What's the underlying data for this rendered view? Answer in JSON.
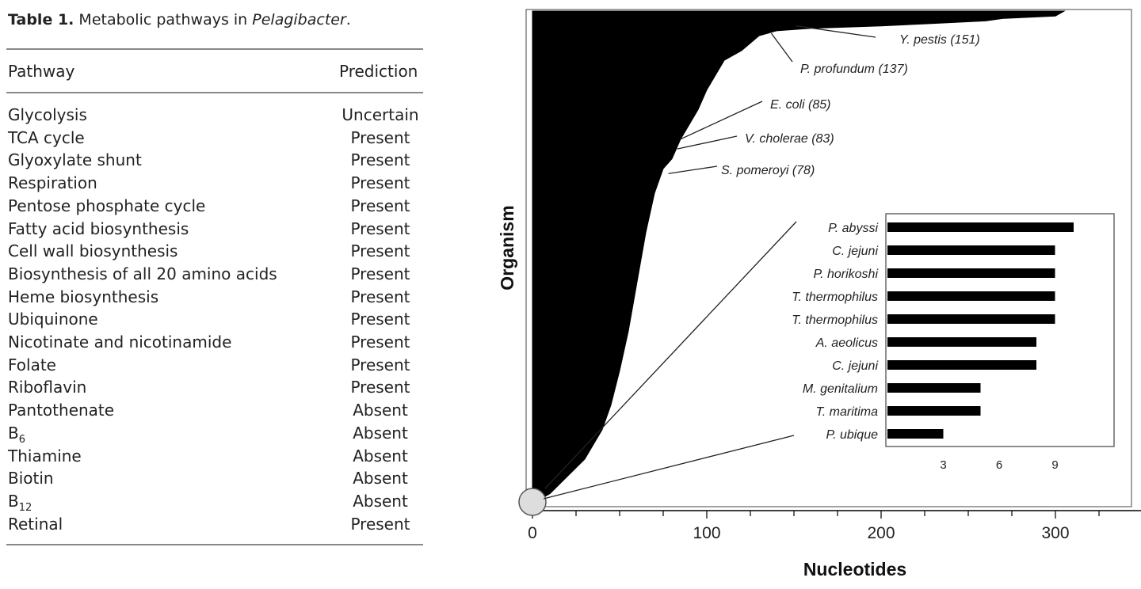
{
  "table": {
    "title_label": "Table 1.",
    "title_text": " Metabolic pathways in ",
    "title_italic": "Pelagibacter",
    "title_end": ".",
    "col_pathway": "Pathway",
    "col_prediction": "Prediction",
    "rows": [
      {
        "pathway": "Glycolysis",
        "prediction": "Uncertain"
      },
      {
        "pathway": "TCA cycle",
        "prediction": "Present"
      },
      {
        "pathway": "Glyoxylate shunt",
        "prediction": "Present"
      },
      {
        "pathway": "Respiration",
        "prediction": "Present"
      },
      {
        "pathway": "Pentose phosphate cycle",
        "prediction": "Present"
      },
      {
        "pathway": "Fatty acid biosynthesis",
        "prediction": "Present"
      },
      {
        "pathway": "Cell wall biosynthesis",
        "prediction": "Present"
      },
      {
        "pathway": "Biosynthesis of all 20 amino acids",
        "prediction": "Present"
      },
      {
        "pathway": "Heme biosynthesis",
        "prediction": "Present"
      },
      {
        "pathway": "Ubiquinone",
        "prediction": "Present"
      },
      {
        "pathway": "Nicotinate and nicotinamide",
        "prediction": "Present"
      },
      {
        "pathway": "Folate",
        "prediction": "Present"
      },
      {
        "pathway": "Riboflavin",
        "prediction": "Present"
      },
      {
        "pathway": "Pantothenate",
        "prediction": "Absent"
      },
      {
        "pathway": "B",
        "sub": "6",
        "prediction": "Absent"
      },
      {
        "pathway": "Thiamine",
        "prediction": "Absent"
      },
      {
        "pathway": "Biotin",
        "prediction": "Absent"
      },
      {
        "pathway": "B",
        "sub": "12",
        "prediction": "Absent"
      },
      {
        "pathway": "Retinal",
        "prediction": "Present"
      }
    ]
  },
  "chart_data": [
    {
      "type": "area",
      "xlabel": "Nucleotides",
      "ylabel": "Organism",
      "xlim": [
        0,
        350
      ],
      "xticks": [
        0,
        100,
        200,
        300
      ],
      "shape_points": [
        [
          0,
          0
        ],
        [
          10,
          0.02
        ],
        [
          30,
          0.09
        ],
        [
          40,
          0.15
        ],
        [
          45,
          0.2
        ],
        [
          50,
          0.27
        ],
        [
          55,
          0.35
        ],
        [
          60,
          0.45
        ],
        [
          65,
          0.55
        ],
        [
          70,
          0.63
        ],
        [
          75,
          0.68
        ],
        [
          80,
          0.7
        ],
        [
          85,
          0.74
        ],
        [
          90,
          0.77
        ],
        [
          95,
          0.8
        ],
        [
          100,
          0.84
        ],
        [
          105,
          0.87
        ],
        [
          110,
          0.9
        ],
        [
          120,
          0.92
        ],
        [
          130,
          0.95
        ],
        [
          140,
          0.96
        ],
        [
          160,
          0.965
        ],
        [
          200,
          0.97
        ],
        [
          230,
          0.975
        ],
        [
          260,
          0.98
        ],
        [
          270,
          0.985
        ],
        [
          300,
          0.99
        ],
        [
          305,
          1.0
        ],
        [
          0,
          1.0
        ]
      ],
      "annotations": [
        {
          "label": "Y. pestis (151)",
          "x": 151,
          "y": 0.97
        },
        {
          "label": "P. profundum (137)",
          "x": 137,
          "y": 0.955
        },
        {
          "label": "E. coli (85)",
          "x": 85,
          "y": 0.74
        },
        {
          "label": "V. cholerae (83)",
          "x": 83,
          "y": 0.72
        },
        {
          "label": "S. pomeroyi (78)",
          "x": 78,
          "y": 0.67
        }
      ]
    },
    {
      "type": "bar",
      "orientation": "horizontal",
      "categories": [
        "P. abyssi",
        "C. jejuni",
        "P. horikoshi",
        "T. thermophilus",
        "T. thermophilus",
        "A. aeolicus",
        "C. jejuni",
        "M. genitalium",
        "T. maritima",
        "P. ubique"
      ],
      "values": [
        10,
        9,
        9,
        9,
        9,
        8,
        8,
        5,
        5,
        3
      ],
      "xlim": [
        0,
        11
      ],
      "xticks": [
        3,
        6,
        9
      ]
    }
  ]
}
